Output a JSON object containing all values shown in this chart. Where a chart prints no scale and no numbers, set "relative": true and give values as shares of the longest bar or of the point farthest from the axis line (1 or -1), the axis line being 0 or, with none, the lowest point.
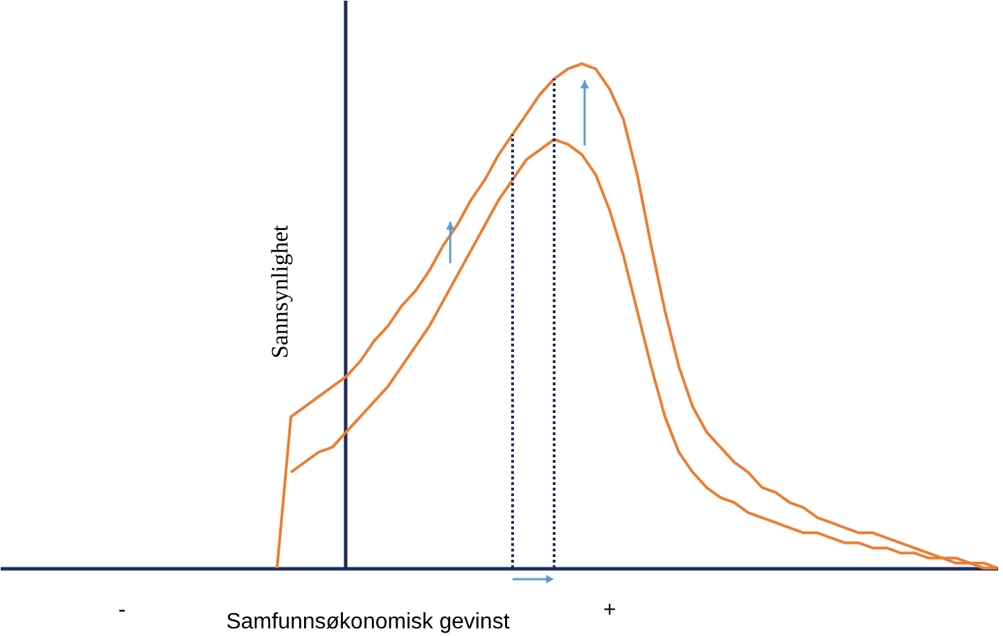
{
  "chart_data": {
    "type": "line",
    "relative": true,
    "xlabel": "Samfunnsøkonomisk gevinst",
    "ylabel": "Sannsynlighet",
    "categories": [
      null,
      null,
      null,
      null,
      null,
      null,
      null,
      null,
      null,
      null,
      null,
      null,
      null,
      null,
      null,
      null,
      null,
      null,
      null,
      null,
      null,
      null,
      null,
      null,
      null,
      null,
      null,
      null,
      null,
      null,
      null,
      null,
      null,
      null,
      null,
      null,
      null,
      null,
      null,
      null,
      null,
      null,
      null,
      null,
      null,
      null,
      null,
      null,
      null,
      null,
      null,
      null,
      null,
      null,
      null,
      null,
      null,
      null,
      null,
      null,
      null,
      null,
      null,
      null,
      null,
      null,
      null,
      null,
      null,
      null,
      null,
      null,
      null
    ],
    "grid": false,
    "marker": "none",
    "line_style": "solid",
    "series": [
      {
        "color": "#ed7d31",
        "values": [
          null,
          null,
          null,
          null,
          null,
          null,
          null,
          null,
          null,
          null,
          null,
          null,
          null,
          null,
          null,
          null,
          null,
          null,
          null,
          null,
          0,
          0.3,
          0.32,
          0.34,
          0.36,
          0.38,
          0.41,
          0.45,
          0.48,
          0.52,
          0.55,
          0.59,
          0.64,
          0.68,
          0.73,
          0.77,
          0.82,
          0.86,
          0.9,
          0.94,
          0.97,
          0.99,
          1.0,
          0.99,
          0.95,
          0.89,
          0.78,
          0.64,
          0.51,
          0.4,
          0.32,
          0.27,
          0.24,
          0.21,
          0.19,
          0.16,
          0.15,
          0.13,
          0.12,
          0.1,
          0.09,
          0.08,
          0.07,
          0.07,
          0.06,
          0.05,
          0.04,
          0.03,
          0.02,
          0.02,
          0.01,
          0.01,
          0
        ]
      },
      {
        "color": "#ed7d31",
        "values": [
          null,
          null,
          null,
          null,
          null,
          null,
          null,
          null,
          null,
          null,
          null,
          null,
          null,
          null,
          null,
          null,
          null,
          null,
          null,
          null,
          null,
          0.19,
          0.21,
          0.23,
          0.24,
          0.27,
          0.3,
          0.33,
          0.36,
          0.4,
          0.44,
          0.48,
          0.53,
          0.58,
          0.63,
          0.68,
          0.73,
          0.77,
          0.81,
          0.83,
          0.85,
          0.84,
          0.82,
          0.78,
          0.71,
          0.62,
          0.51,
          0.4,
          0.3,
          0.23,
          0.19,
          0.16,
          0.14,
          0.13,
          0.11,
          0.1,
          0.09,
          0.08,
          0.07,
          0.07,
          0.06,
          0.05,
          0.05,
          0.04,
          0.04,
          0.03,
          0.03,
          0.02,
          0.02,
          0.01,
          0.01,
          0,
          0
        ]
      }
    ],
    "annotations": [
      "-",
      "+"
    ]
  }
}
